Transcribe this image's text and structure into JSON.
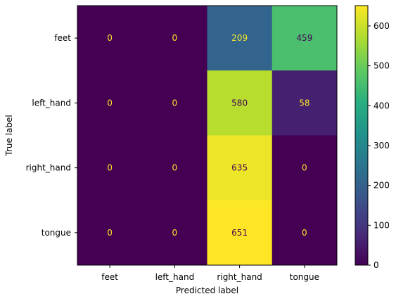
{
  "chart_data": {
    "type": "heatmap",
    "title": "",
    "xlabel": "Predicted label",
    "ylabel": "True label",
    "x_categories": [
      "feet",
      "left_hand",
      "right_hand",
      "tongue"
    ],
    "y_categories": [
      "feet",
      "left_hand",
      "right_hand",
      "tongue"
    ],
    "values": [
      [
        0,
        0,
        209,
        459
      ],
      [
        0,
        0,
        580,
        58
      ],
      [
        0,
        0,
        635,
        0
      ],
      [
        0,
        0,
        651,
        0
      ]
    ],
    "colormap": "viridis",
    "vmin": 0,
    "vmax": 651,
    "colorbar_ticks": [
      0,
      100,
      200,
      300,
      400,
      500,
      600
    ],
    "text_colors": {
      "on_dark": "#fde725",
      "on_light": "#440154"
    }
  }
}
